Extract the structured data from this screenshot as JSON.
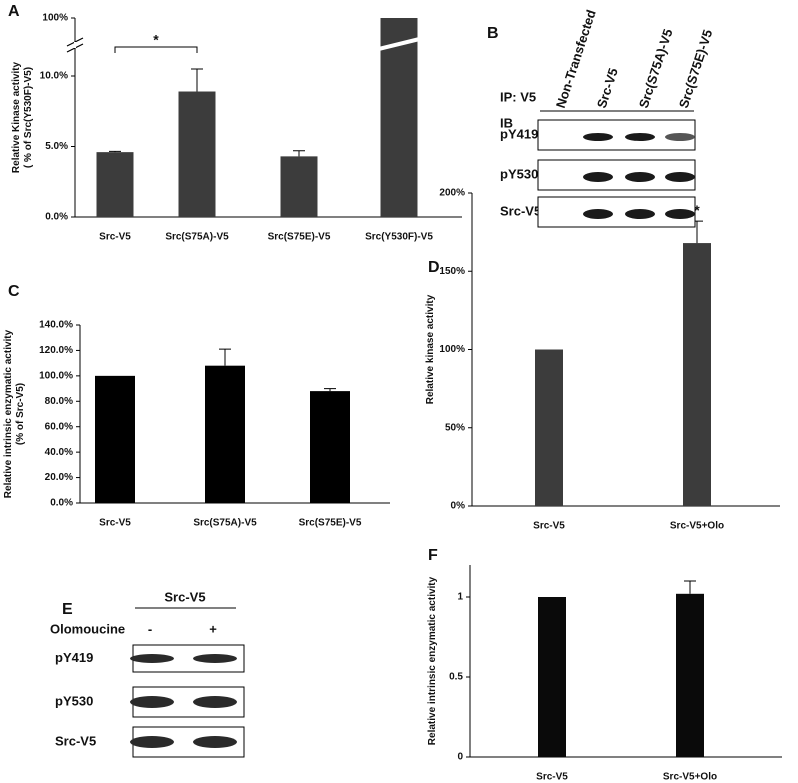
{
  "chart_data": [
    {
      "type": "bar",
      "panel": "A",
      "ylabel": [
        "Relative Kinase activity",
        "( % of Src(Y530F)-V5)"
      ],
      "categories": [
        "Src-V5",
        "Src(S75A)-V5",
        "Src(S75E)-V5",
        "Src(Y530F)-V5"
      ],
      "values": [
        4.6,
        8.9,
        4.3,
        100
      ],
      "errors": [
        0.05,
        1.6,
        0.4,
        null
      ],
      "color": "#3c3c3c",
      "ylim": [
        0,
        100
      ],
      "yticks": [
        {
          "value": 0,
          "label": "0.0%"
        },
        {
          "value": 5,
          "label": "5.0%"
        },
        {
          "value": 10,
          "label": "10.0%"
        },
        {
          "value": 100,
          "label": "100%"
        }
      ],
      "axis_break": true,
      "annotations": [
        {
          "text": "*",
          "between": [
            "Src-V5",
            "Src(S75A)-V5"
          ]
        }
      ]
    },
    {
      "type": "bar",
      "panel": "C",
      "ylabel": [
        "Relative intrinsic enzymatic activity",
        "(% of Src-V5)"
      ],
      "categories": [
        "Src-V5",
        "Src(S75A)-V5",
        "Src(S75E)-V5"
      ],
      "values": [
        100,
        108,
        88
      ],
      "errors": [
        null,
        13,
        2
      ],
      "color": "#000000",
      "ylim": [
        0,
        140
      ],
      "yticks": [
        {
          "value": 0,
          "label": "0.0%"
        },
        {
          "value": 20,
          "label": "20.0%"
        },
        {
          "value": 40,
          "label": "40.0%"
        },
        {
          "value": 60,
          "label": "60.0%"
        },
        {
          "value": 80,
          "label": "80.0%"
        },
        {
          "value": 100,
          "label": "100.0%"
        },
        {
          "value": 120,
          "label": "120.0%"
        },
        {
          "value": 140,
          "label": "140.0%"
        }
      ]
    },
    {
      "type": "bar",
      "panel": "D",
      "ylabel": [
        "Relative kinase activity"
      ],
      "categories": [
        "Src-V5",
        "Src-V5+Olo"
      ],
      "values": [
        100,
        168
      ],
      "errors": [
        null,
        14
      ],
      "color": "#3c3c3c",
      "ylim": [
        0,
        200
      ],
      "yticks": [
        {
          "value": 0,
          "label": "0%"
        },
        {
          "value": 50,
          "label": "50%"
        },
        {
          "value": 100,
          "label": "100%"
        },
        {
          "value": 150,
          "label": "150%"
        },
        {
          "value": 200,
          "label": "200%"
        }
      ],
      "annotations": [
        {
          "text": "*",
          "at": "Src-V5+Olo"
        }
      ]
    },
    {
      "type": "bar",
      "panel": "F",
      "ylabel": [
        "Relative intrinsic enzymatic activity"
      ],
      "categories": [
        "Src-V5",
        "Src-V5+Olo"
      ],
      "values": [
        1,
        1.02
      ],
      "errors": [
        null,
        0.08
      ],
      "color": "#0a0a0a",
      "ylim": [
        0,
        1.2
      ],
      "yticks": [
        0,
        0.5,
        1
      ]
    }
  ],
  "blots": [
    {
      "panel": "B",
      "ip": "IP: V5",
      "ib": "IB",
      "lanes": [
        "Non-Transfected",
        "Src-V5",
        "Src(S75A)-V5",
        "Src(S75E)-V5"
      ],
      "rows": [
        "pY419",
        "pY530",
        "Src-V5"
      ]
    },
    {
      "panel": "E",
      "header": "Src-V5",
      "treatment": "Olomoucine",
      "lanes": [
        "-",
        "+"
      ],
      "rows": [
        "pY419",
        "pY530",
        "Src-V5"
      ]
    }
  ]
}
